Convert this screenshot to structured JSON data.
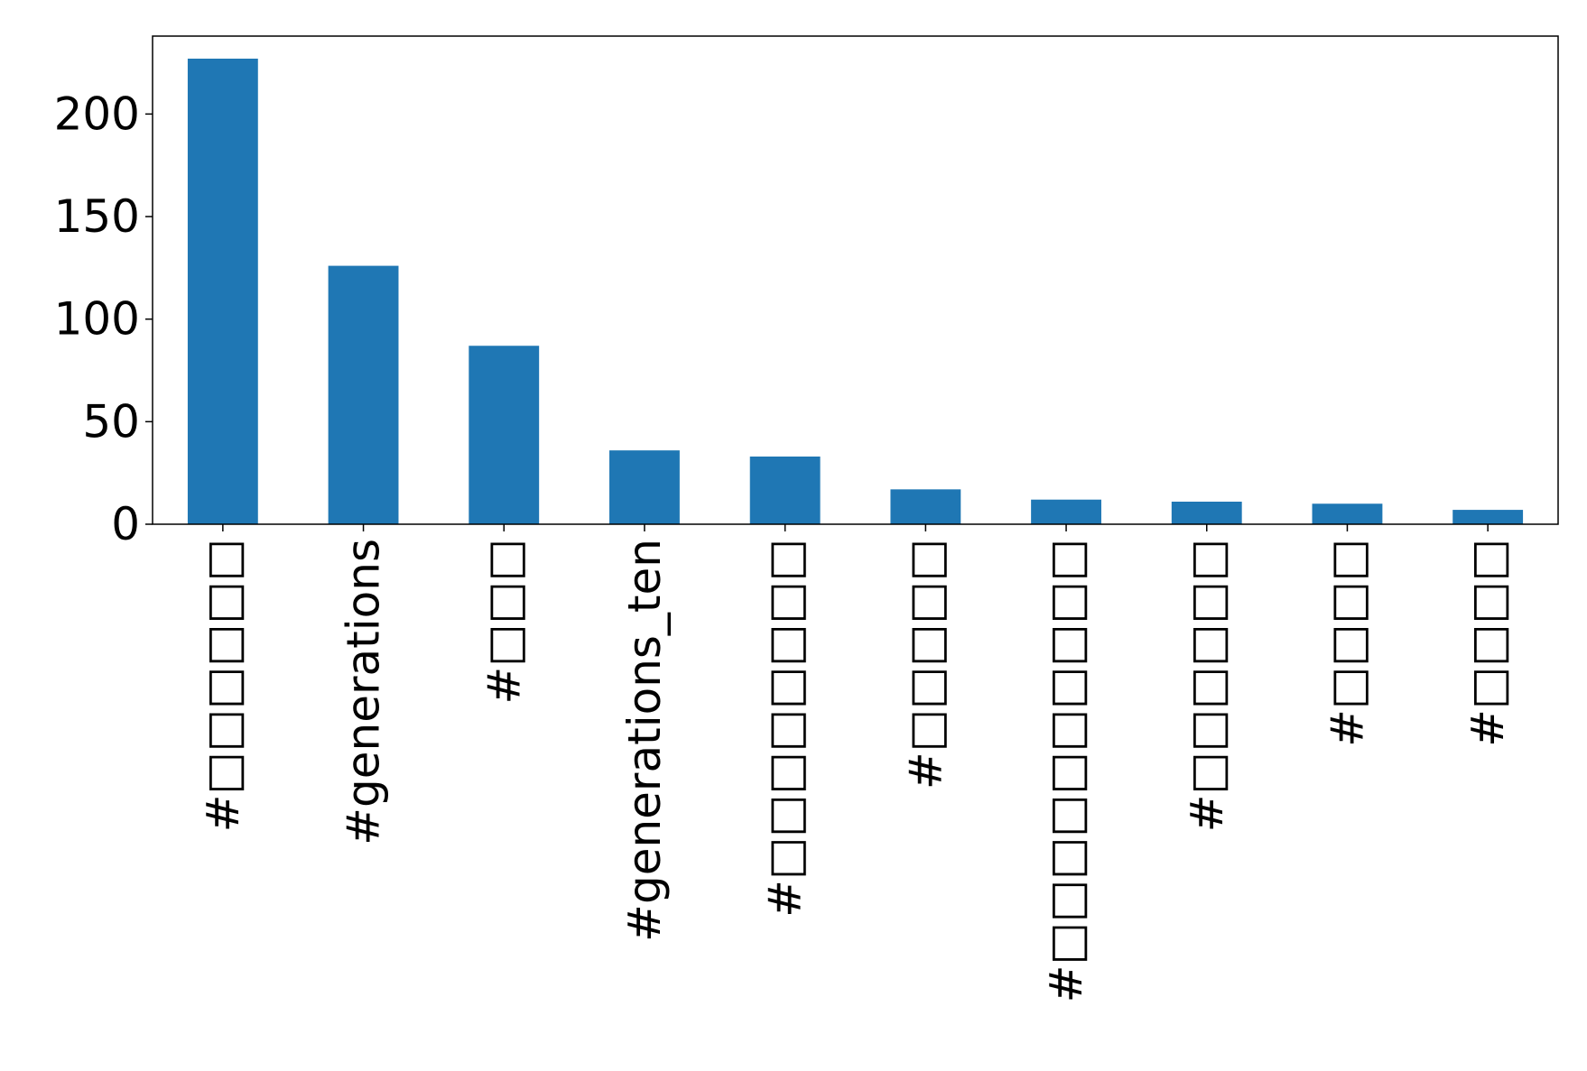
{
  "chart_data": {
    "type": "bar",
    "title": "",
    "xlabel": "",
    "ylabel": "",
    "categories": [
      "#□□□□□□",
      "#generations",
      "#□□□",
      "#generations_ten",
      "#□□□□□□□□",
      "#□□□□□",
      "#□□□□□□□□□□",
      "#□□□□□□",
      "#□□□□",
      "#□□□□"
    ],
    "values": [
      227,
      126,
      87,
      36,
      33,
      17,
      12,
      11,
      10,
      7
    ],
    "ylim": [
      0,
      238
    ],
    "yticks": [
      0,
      50,
      100,
      150,
      200
    ],
    "bar_color": "#1f77b4",
    "grid": false,
    "legend": "none"
  }
}
